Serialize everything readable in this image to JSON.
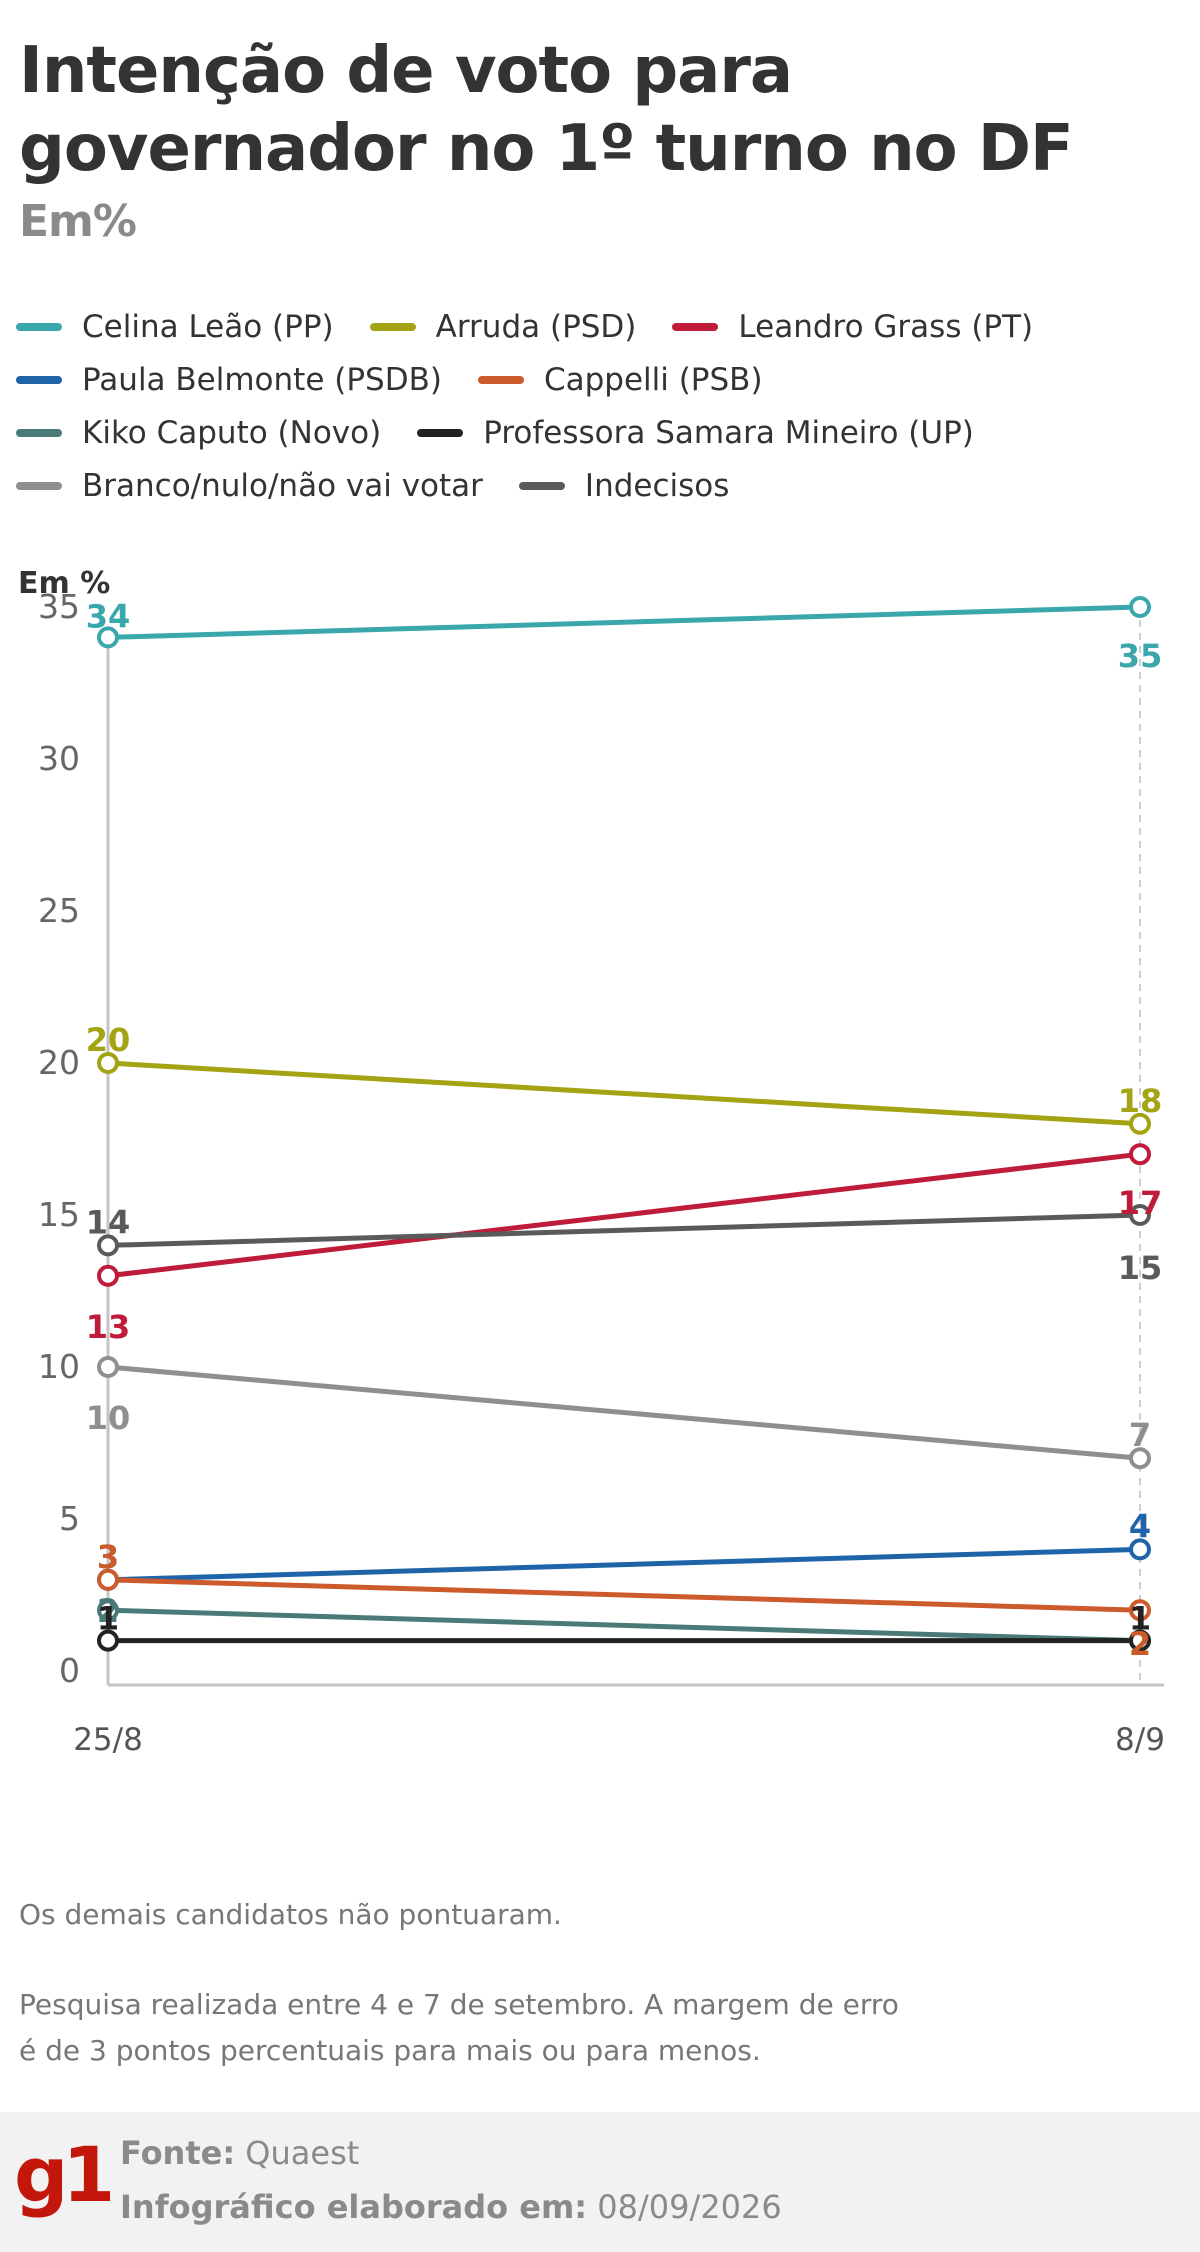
{
  "title": "Intenção de voto para governador no 1º turno no DF",
  "subtitle": "Em%",
  "legend": [
    {
      "label": "Celina Leão (PP)",
      "color": "#3aa7ad"
    },
    {
      "label": "Arruda (PSD)",
      "color": "#a3a313"
    },
    {
      "label": "Leandro Grass (PT)",
      "color": "#bf1b3a"
    },
    {
      "label": "Paula Belmonte (PSDB)",
      "color": "#1f64a8"
    },
    {
      "label": "Cappelli (PSB)",
      "color": "#cc5a2a"
    },
    {
      "label": "Kiko Caputo (Novo)",
      "color": "#4a7a78"
    },
    {
      "label": "Professora Samara Mineiro (UP)",
      "color": "#222222"
    },
    {
      "label": "Branco/nulo/não vai votar",
      "color": "#8f8f8f"
    },
    {
      "label": "Indecisos",
      "color": "#5a5a5a"
    }
  ],
  "chart_data": {
    "type": "line",
    "ylabel": "Em %",
    "ylim": [
      0,
      35
    ],
    "yticks": [
      0,
      5,
      10,
      15,
      20,
      25,
      30,
      35
    ],
    "x": [
      "25/8",
      "8/9"
    ],
    "series": [
      {
        "name": "Celina Leão (PP)",
        "color": "#3aa7ad",
        "values": [
          34,
          35
        ]
      },
      {
        "name": "Arruda (PSD)",
        "color": "#a3a313",
        "values": [
          20,
          18
        ]
      },
      {
        "name": "Leandro Grass (PT)",
        "color": "#bf1b3a",
        "values": [
          13,
          17
        ]
      },
      {
        "name": "Paula Belmonte (PSDB)",
        "color": "#1f64a8",
        "values": [
          3,
          4
        ]
      },
      {
        "name": "Cappelli (PSB)",
        "color": "#cc5a2a",
        "values": [
          3,
          2
        ]
      },
      {
        "name": "Kiko Caputo (Novo)",
        "color": "#4a7a78",
        "values": [
          2,
          1
        ]
      },
      {
        "name": "Professora Samara Mineiro (UP)",
        "color": "#222222",
        "values": [
          1,
          1
        ]
      },
      {
        "name": "Branco/nulo/não vai votar",
        "color": "#8f8f8f",
        "values": [
          10,
          7
        ]
      },
      {
        "name": "Indecisos",
        "color": "#5a5a5a",
        "values": [
          14,
          15
        ]
      }
    ]
  },
  "notes": {
    "line1": "Os demais candidatos não pontuaram.",
    "line2": "Pesquisa realizada entre 4 e 7 de setembro. A margem de erro é de 3 pontos percentuais para mais ou para menos."
  },
  "footer": {
    "logo": "g1",
    "source_label": "Fonte:",
    "source_value": "Quaest",
    "made_label": "Infográfico elaborado em:",
    "made_value": "08/09/2026"
  }
}
